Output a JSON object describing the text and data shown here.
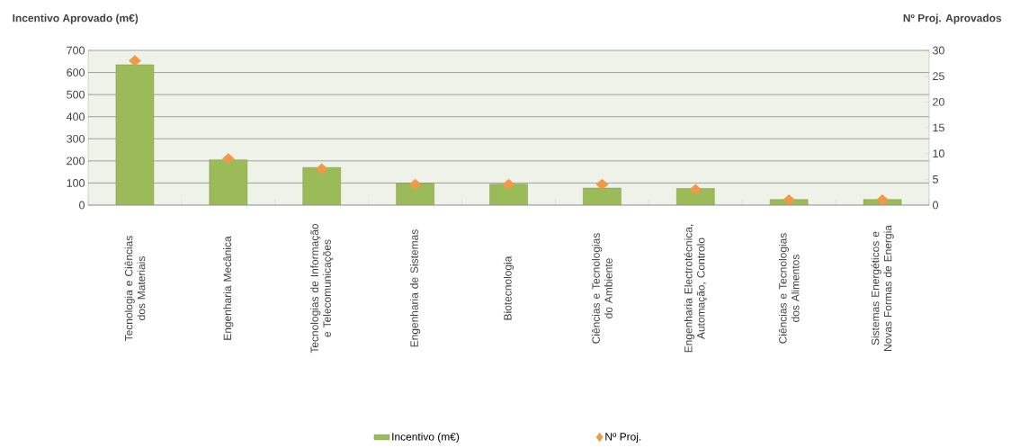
{
  "chart_data": {
    "type": "bar",
    "ylabel": "Incentivo Aprovado (m€)",
    "y2label": "Nº Proj. Aprovados",
    "categories": [
      "Tecnologia e Ciências dos Materiais",
      "Engenharia Mecânica",
      "Tecnologias de Informação e Telecomunicações",
      "Engenharia de Sistemas",
      "Biotecnologia",
      "Ciências e Tecnologias do Ambiente",
      "Engenharia Electrotécnica, Automação, Controlo",
      "Ciências e Tecnologias dos Alimentos",
      "Sistemas Energéticos e Novas Formas de Energia"
    ],
    "series": [
      {
        "name": "Incentivo (m€)",
        "color": "#9bbb59",
        "values": [
          635,
          205,
          170,
          98,
          95,
          77,
          75,
          25,
          25
        ]
      },
      {
        "name": "Nº Proj.",
        "type": "scatter",
        "axis": "y2",
        "color": "#f79646",
        "marker": "diamond",
        "values": [
          28,
          9,
          7,
          4,
          4,
          4,
          3,
          1,
          1
        ]
      }
    ],
    "ylim": [
      0,
      700
    ],
    "yticks": [
      0,
      100,
      200,
      300,
      400,
      500,
      600,
      700
    ],
    "y2lim": [
      0,
      30
    ],
    "y2ticks": [
      0,
      5,
      10,
      15,
      20,
      25,
      30
    ],
    "grid": "y",
    "legend": "bottom"
  }
}
